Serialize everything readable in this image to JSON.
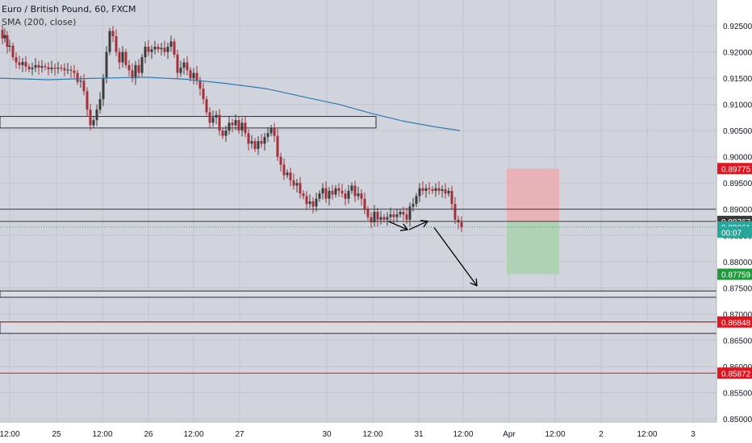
{
  "legend": {
    "title": "Euro / British Pound, 60, FXCM",
    "indicator": "SMA (200, close)"
  },
  "colors": {
    "background": "#d1d4dc",
    "grid": "#c2c5cc",
    "up": "#3b3b3b",
    "down": "#a4313a",
    "sma": "#2f7bb0",
    "red_level": "#e3141f",
    "stop_zone": "#e8b2b7",
    "target_zone": "#aed2b3",
    "current_line": "#27a69a",
    "scale_bg": "#ffffff",
    "scale_text": "#131722"
  },
  "price_axis": {
    "ticks": [
      "0.92500",
      "0.92000",
      "0.91500",
      "0.91000",
      "0.90500",
      "0.90000",
      "0.89500",
      "0.89000",
      "0.88500",
      "0.88000",
      "0.87500",
      "0.87000",
      "0.86500",
      "0.86000",
      "0.85500",
      "0.85000"
    ],
    "badges": [
      {
        "label": "0.89775",
        "value": 0.89775,
        "color": "#e3141f"
      },
      {
        "label": "0.88767",
        "value": 0.88767,
        "color": "#3b3b3b"
      },
      {
        "label": "0.88661",
        "value": 0.88661,
        "color": "#27a69a"
      },
      {
        "label": "00:07",
        "value": 0.88561,
        "color": "#27a69a"
      },
      {
        "label": "0.87759",
        "value": 0.87759,
        "color": "#1f9a3d"
      },
      {
        "label": "0.86848",
        "value": 0.86848,
        "color": "#e3141f"
      },
      {
        "label": "0.85872",
        "value": 0.85872,
        "color": "#e3141f"
      }
    ]
  },
  "time_axis": {
    "labels": [
      "12:00",
      "25",
      "12:00",
      "26",
      "12:00",
      "27",
      "30",
      "12:00",
      "31",
      "12:00",
      "Apr",
      "12:00",
      "2",
      "12:00",
      "3"
    ]
  },
  "chart_data": {
    "type": "candlestick",
    "symbol": "Euro / British Pound, 60, FXCM",
    "ylim": [
      0.8495,
      0.9277
    ],
    "yticks": [
      0.925,
      0.92,
      0.915,
      0.91,
      0.905,
      0.9,
      0.895,
      0.89,
      0.885,
      0.88,
      0.875,
      0.87,
      0.865,
      0.86,
      0.855,
      0.85
    ],
    "grid": true,
    "close_path": [
      [
        0,
        0.9242
      ],
      [
        3,
        0.9226
      ],
      [
        6,
        0.9232
      ],
      [
        9,
        0.921
      ],
      [
        12,
        0.9212
      ],
      [
        16,
        0.919
      ],
      [
        20,
        0.918
      ],
      [
        24,
        0.9175
      ],
      [
        28,
        0.9181
      ],
      [
        32,
        0.9172
      ],
      [
        36,
        0.9167
      ],
      [
        40,
        0.917
      ],
      [
        44,
        0.9175
      ],
      [
        48,
        0.917
      ],
      [
        52,
        0.9173
      ],
      [
        56,
        0.9171
      ],
      [
        60,
        0.9167
      ],
      [
        64,
        0.917
      ],
      [
        68,
        0.9168
      ],
      [
        72,
        0.917
      ],
      [
        76,
        0.9169
      ],
      [
        80,
        0.9165
      ],
      [
        84,
        0.9166
      ],
      [
        88,
        0.9164
      ],
      [
        92,
        0.916
      ],
      [
        96,
        0.9143
      ],
      [
        100,
        0.9145
      ],
      [
        104,
        0.9125
      ],
      [
        108,
        0.909
      ],
      [
        112,
        0.906
      ],
      [
        116,
        0.907
      ],
      [
        120,
        0.909
      ],
      [
        124,
        0.911
      ],
      [
        128,
        0.915
      ],
      [
        132,
        0.92
      ],
      [
        136,
        0.924
      ],
      [
        140,
        0.923
      ],
      [
        144,
        0.92
      ],
      [
        148,
        0.918
      ],
      [
        152,
        0.92
      ],
      [
        156,
        0.9175
      ],
      [
        160,
        0.9165
      ],
      [
        164,
        0.915
      ],
      [
        168,
        0.9175
      ],
      [
        172,
        0.916
      ],
      [
        176,
        0.919
      ],
      [
        180,
        0.921
      ],
      [
        184,
        0.92
      ],
      [
        188,
        0.9205
      ],
      [
        192,
        0.921
      ],
      [
        196,
        0.9205
      ],
      [
        200,
        0.9208
      ],
      [
        204,
        0.92
      ],
      [
        208,
        0.921
      ],
      [
        212,
        0.922
      ],
      [
        216,
        0.9195
      ],
      [
        220,
        0.916
      ],
      [
        224,
        0.917
      ],
      [
        228,
        0.918
      ],
      [
        232,
        0.9165
      ],
      [
        236,
        0.915
      ],
      [
        240,
        0.916
      ],
      [
        244,
        0.9145
      ],
      [
        248,
        0.913
      ],
      [
        252,
        0.911
      ],
      [
        256,
        0.9085
      ],
      [
        260,
        0.9065
      ],
      [
        264,
        0.9075
      ],
      [
        268,
        0.908
      ],
      [
        272,
        0.905
      ],
      [
        276,
        0.904
      ],
      [
        280,
        0.905
      ],
      [
        284,
        0.9065
      ],
      [
        288,
        0.906
      ],
      [
        292,
        0.907
      ],
      [
        296,
        0.905
      ],
      [
        300,
        0.9065
      ],
      [
        304,
        0.9045
      ],
      [
        308,
        0.9025
      ],
      [
        312,
        0.903
      ],
      [
        316,
        0.9015
      ],
      [
        320,
        0.903
      ],
      [
        324,
        0.9025
      ],
      [
        328,
        0.9038
      ],
      [
        332,
        0.9045
      ],
      [
        336,
        0.9055
      ],
      [
        340,
        0.904
      ],
      [
        344,
        0.9
      ],
      [
        348,
        0.8985
      ],
      [
        352,
        0.8965
      ],
      [
        356,
        0.897
      ],
      [
        360,
        0.8955
      ],
      [
        364,
        0.8945
      ],
      [
        368,
        0.895
      ],
      [
        372,
        0.893
      ],
      [
        376,
        0.8925
      ],
      [
        380,
        0.891
      ],
      [
        384,
        0.8915
      ],
      [
        388,
        0.8905
      ],
      [
        392,
        0.892
      ],
      [
        396,
        0.893
      ],
      [
        400,
        0.894
      ],
      [
        404,
        0.892
      ],
      [
        408,
        0.8935
      ],
      [
        412,
        0.8928
      ],
      [
        416,
        0.894
      ],
      [
        420,
        0.8935
      ],
      [
        424,
        0.893
      ],
      [
        428,
        0.892
      ],
      [
        432,
        0.8935
      ],
      [
        436,
        0.8945
      ],
      [
        440,
        0.8925
      ],
      [
        444,
        0.893
      ],
      [
        448,
        0.892
      ],
      [
        452,
        0.89
      ],
      [
        456,
        0.8885
      ],
      [
        460,
        0.8875
      ],
      [
        464,
        0.8895
      ],
      [
        468,
        0.888
      ],
      [
        472,
        0.8885
      ],
      [
        476,
        0.888
      ],
      [
        480,
        0.8885
      ],
      [
        484,
        0.889
      ],
      [
        488,
        0.8885
      ],
      [
        492,
        0.889
      ],
      [
        496,
        0.8895
      ],
      [
        500,
        0.889
      ],
      [
        504,
        0.888
      ],
      [
        508,
        0.8905
      ],
      [
        512,
        0.891
      ],
      [
        516,
        0.8925
      ],
      [
        520,
        0.894
      ],
      [
        524,
        0.8935
      ],
      [
        528,
        0.894
      ],
      [
        532,
        0.8938
      ],
      [
        536,
        0.8935
      ],
      [
        540,
        0.894
      ],
      [
        544,
        0.8935
      ],
      [
        548,
        0.8938
      ],
      [
        552,
        0.893
      ],
      [
        556,
        0.8935
      ],
      [
        560,
        0.891
      ],
      [
        564,
        0.888
      ],
      [
        568,
        0.8875
      ],
      [
        572,
        0.8866
      ]
    ],
    "sma": [
      [
        0,
        0.915
      ],
      [
        60,
        0.9147
      ],
      [
        120,
        0.915
      ],
      [
        180,
        0.9152
      ],
      [
        230,
        0.9148
      ],
      [
        280,
        0.914
      ],
      [
        330,
        0.913
      ],
      [
        380,
        0.9113
      ],
      [
        420,
        0.91
      ],
      [
        460,
        0.9083
      ],
      [
        500,
        0.9068
      ],
      [
        540,
        0.9057
      ],
      [
        570,
        0.905
      ]
    ],
    "zones": [
      {
        "name": "gray-box-upper",
        "x0": 0,
        "x1": 466,
        "y0": 0.9055,
        "y1": 0.9077
      },
      {
        "name": "gray-box-middle",
        "x0": 0,
        "x1": 888,
        "y0": 0.8732,
        "y1": 0.8744
      },
      {
        "name": "gray-box-lower",
        "x0": 0,
        "x1": 888,
        "y0": 0.8663,
        "y1": 0.8685
      }
    ],
    "horizontal_lines": [
      {
        "name": "resistance-line-1",
        "value": 0.89,
        "color": "#3b3b3b"
      },
      {
        "name": "resistance-line-2",
        "value": 0.88767,
        "color": "#3b3b3b"
      },
      {
        "name": "support-line-red-1",
        "value": 0.86848,
        "color": "#e3141f"
      },
      {
        "name": "support-line-red-2",
        "value": 0.85872,
        "color": "#e3141f"
      }
    ],
    "position": {
      "entry": 0.88767,
      "stop": 0.89775,
      "target": 0.87759,
      "x0": 628,
      "x1": 693
    },
    "current_price": 0.88661,
    "arrows": [
      {
        "from": [
          481,
          0.8877
        ],
        "to": [
          505,
          0.8861
        ]
      },
      {
        "from": [
          507,
          0.8861
        ],
        "to": [
          530,
          0.8877
        ]
      },
      {
        "from": [
          538,
          0.8865
        ],
        "to": [
          591,
          0.8754
        ]
      }
    ]
  }
}
